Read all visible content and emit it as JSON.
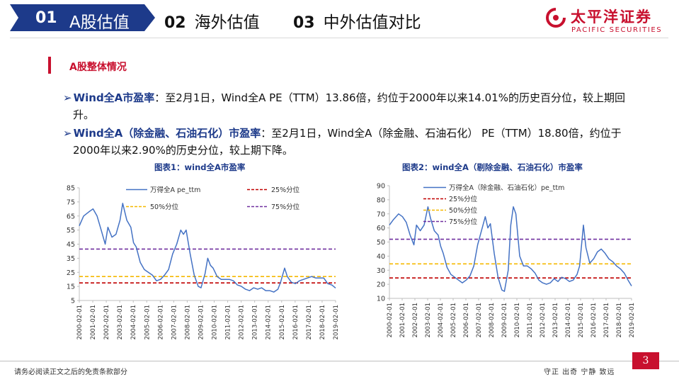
{
  "header": {
    "tabs": [
      {
        "num": "01",
        "label": "A股估值",
        "active": true
      },
      {
        "num": "02",
        "label": "海外估值",
        "active": false
      },
      {
        "num": "03",
        "label": "中外估值对比",
        "active": false
      }
    ],
    "logo_cn": "太平洋证券",
    "logo_en": "PACIFIC SECURITIES"
  },
  "section_title": "A股整体情况",
  "bullets": [
    {
      "keyword": "Wind全A市盈率",
      "line1": "：至2月1日，Wind全A PE（TTM）13.86倍，约位于2000年以来14.01%的历史百分位，较上期回",
      "line2": "升。"
    },
    {
      "keyword": "Wind全A（除金融、石油石化）市盈率",
      "line1": "：至2月1日，Wind全A（除金融、石油石化） PE（TTM）18.80倍，约位于",
      "line2": "2000年以来2.90%的历史分位，较上期下降。"
    }
  ],
  "chart_data": [
    {
      "type": "line",
      "title": "图表1：wind全A市盈率",
      "x_ticks": [
        "2000-02-01",
        "2001-02-01",
        "2002-02-01",
        "2003-02-01",
        "2004-02-01",
        "2005-02-01",
        "2006-02-01",
        "2007-02-01",
        "2008-02-01",
        "2009-02-01",
        "2010-02-01",
        "2011-02-01",
        "2012-02-01",
        "2013-02-01",
        "2014-02-01",
        "2015-02-01",
        "2016-02-01",
        "2017-02-01",
        "2018-02-01",
        "2019-02-01"
      ],
      "ylim": [
        5,
        85
      ],
      "y_ticks": [
        5,
        15,
        25,
        35,
        45,
        55,
        65,
        75,
        85
      ],
      "series": [
        {
          "name": "万得全A pe_ttm",
          "color": "#4472c4",
          "x": [
            2000.08,
            2000.4,
            2000.8,
            2001.1,
            2001.4,
            2001.7,
            2002.0,
            2002.2,
            2002.5,
            2002.8,
            2003.1,
            2003.3,
            2003.6,
            2003.9,
            2004.1,
            2004.3,
            2004.6,
            2004.9,
            2005.2,
            2005.5,
            2005.8,
            2006.1,
            2006.4,
            2006.7,
            2007.0,
            2007.3,
            2007.6,
            2007.8,
            2008.0,
            2008.3,
            2008.6,
            2008.9,
            2009.1,
            2009.4,
            2009.6,
            2009.8,
            2010.0,
            2010.3,
            2010.6,
            2010.9,
            2011.2,
            2011.5,
            2011.8,
            2012.1,
            2012.4,
            2012.7,
            2013.0,
            2013.3,
            2013.6,
            2013.9,
            2014.2,
            2014.5,
            2014.8,
            2015.0,
            2015.3,
            2015.5,
            2015.8,
            2016.1,
            2016.4,
            2016.7,
            2017.0,
            2017.3,
            2017.6,
            2017.9,
            2018.2,
            2018.5,
            2018.8,
            2019.08
          ],
          "values": [
            58,
            65,
            68,
            70,
            65,
            55,
            45,
            57,
            50,
            52,
            62,
            74,
            62,
            57,
            46,
            43,
            32,
            27,
            25,
            23,
            19,
            20,
            23,
            27,
            38,
            45,
            55,
            52,
            55,
            38,
            23,
            15,
            14,
            24,
            35,
            30,
            28,
            22,
            20,
            20,
            20,
            19,
            16,
            15,
            13,
            12,
            14,
            13,
            14,
            12,
            12,
            11,
            13,
            18,
            28,
            22,
            18,
            17,
            19,
            20,
            21,
            22,
            21,
            21,
            21,
            17,
            16,
            13.86
          ]
        },
        {
          "name": "25%分位",
          "color": "#c00000",
          "const": 17.5
        },
        {
          "name": "50%分位",
          "color": "#f5b800",
          "const": 22
        },
        {
          "name": "75%分位",
          "color": "#7030a0",
          "const": 41.5
        }
      ]
    },
    {
      "type": "line",
      "title": "图表2：wind全A（剔除金融、石油石化）市盈率",
      "x_ticks": [
        "2000-02-01",
        "2001-02-01",
        "2002-02-01",
        "2003-02-01",
        "2004-02-01",
        "2005-02-01",
        "2006-02-01",
        "2007-02-01",
        "2008-02-01",
        "2009-02-01",
        "2010-02-01",
        "2011-02-01",
        "2012-02-01",
        "2013-02-01",
        "2014-02-01",
        "2015-02-01",
        "2016-02-01",
        "2017-02-01",
        "2018-02-01",
        "2019-02-01"
      ],
      "ylim": [
        10,
        90
      ],
      "y_ticks": [
        10,
        20,
        30,
        40,
        50,
        60,
        70,
        80,
        90
      ],
      "series": [
        {
          "name": "万得全A（除金融、石油石化）pe_ttm",
          "color": "#4472c4",
          "x": [
            2000.08,
            2000.4,
            2000.8,
            2001.1,
            2001.4,
            2001.7,
            2002.0,
            2002.2,
            2002.5,
            2002.8,
            2003.1,
            2003.3,
            2003.6,
            2003.9,
            2004.1,
            2004.3,
            2004.6,
            2004.9,
            2005.2,
            2005.5,
            2005.8,
            2006.1,
            2006.4,
            2006.7,
            2007.0,
            2007.3,
            2007.6,
            2007.8,
            2008.0,
            2008.3,
            2008.6,
            2008.9,
            2009.1,
            2009.4,
            2009.6,
            2009.8,
            2010.0,
            2010.3,
            2010.6,
            2010.9,
            2011.2,
            2011.5,
            2011.8,
            2012.1,
            2012.4,
            2012.7,
            2013.0,
            2013.3,
            2013.6,
            2013.9,
            2014.2,
            2014.5,
            2014.8,
            2015.0,
            2015.3,
            2015.5,
            2015.8,
            2016.1,
            2016.4,
            2016.7,
            2017.0,
            2017.3,
            2017.6,
            2017.9,
            2018.2,
            2018.5,
            2018.8,
            2019.08
          ],
          "values": [
            62,
            66,
            70,
            68,
            64,
            55,
            48,
            62,
            58,
            62,
            75,
            67,
            58,
            55,
            47,
            42,
            32,
            27,
            25,
            23,
            21,
            23,
            26,
            33,
            48,
            58,
            68,
            60,
            63,
            42,
            25,
            16,
            15,
            30,
            62,
            75,
            70,
            40,
            33,
            33,
            31,
            28,
            23,
            21,
            20,
            21,
            24,
            22,
            25,
            24,
            22,
            23,
            27,
            33,
            62,
            46,
            35,
            38,
            43,
            45,
            42,
            38,
            36,
            33,
            31,
            28,
            23,
            18.8
          ]
        },
        {
          "name": "25%分位",
          "color": "#c00000",
          "const": 24.5
        },
        {
          "name": "50%分位",
          "color": "#f5b800",
          "const": 34.5
        },
        {
          "name": "75%分位",
          "color": "#7030a0",
          "const": 52
        }
      ]
    }
  ],
  "footer": {
    "disclaimer": "请务必阅读正文之后的免责条款部分",
    "slogan": "守正 出奇 宁静 致远",
    "page": "3"
  }
}
